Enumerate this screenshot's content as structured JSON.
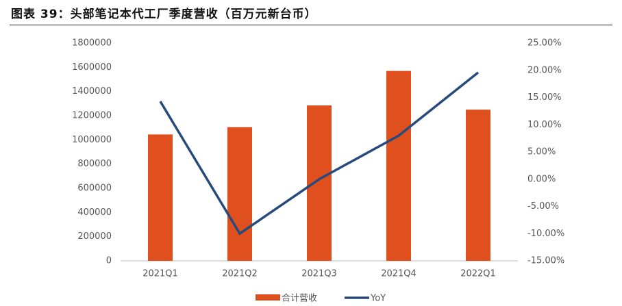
{
  "chart_data": {
    "type": "bar-line",
    "title": "图表 39：头部笔记本代工厂季度营收（百万元新台币）",
    "categories": [
      "2021Q1",
      "2021Q2",
      "2021Q3",
      "2021Q4",
      "2022Q1"
    ],
    "series": [
      {
        "name": "合计营收",
        "color": "#e0501e",
        "type": "bar",
        "values": [
          1045000,
          1105000,
          1285000,
          1570000,
          1250000
        ]
      },
      {
        "name": "YoY",
        "color": "#264a7c",
        "type": "line",
        "axis": "y2",
        "values": [
          14.3,
          -10,
          0,
          8,
          19.6
        ]
      }
    ],
    "ylim": [
      0,
      1800000
    ],
    "yticks": [
      0,
      200000,
      400000,
      600000,
      800000,
      1000000,
      1200000,
      1400000,
      1600000,
      1800000
    ],
    "y2lim": [
      -15,
      25
    ],
    "y2ticks": [
      {
        "value": -15,
        "label": "-15.00%"
      },
      {
        "value": -10,
        "label": "-10.00%"
      },
      {
        "value": -5,
        "label": "-5.00%"
      },
      {
        "value": 0,
        "label": "0.00%"
      },
      {
        "value": 5,
        "label": "5.00%"
      },
      {
        "value": 10,
        "label": "10.00%"
      },
      {
        "value": 15,
        "label": "15.00%"
      },
      {
        "value": 20,
        "label": "20.00%"
      },
      {
        "value": 25,
        "label": "25.00%"
      }
    ],
    "grid": false
  }
}
